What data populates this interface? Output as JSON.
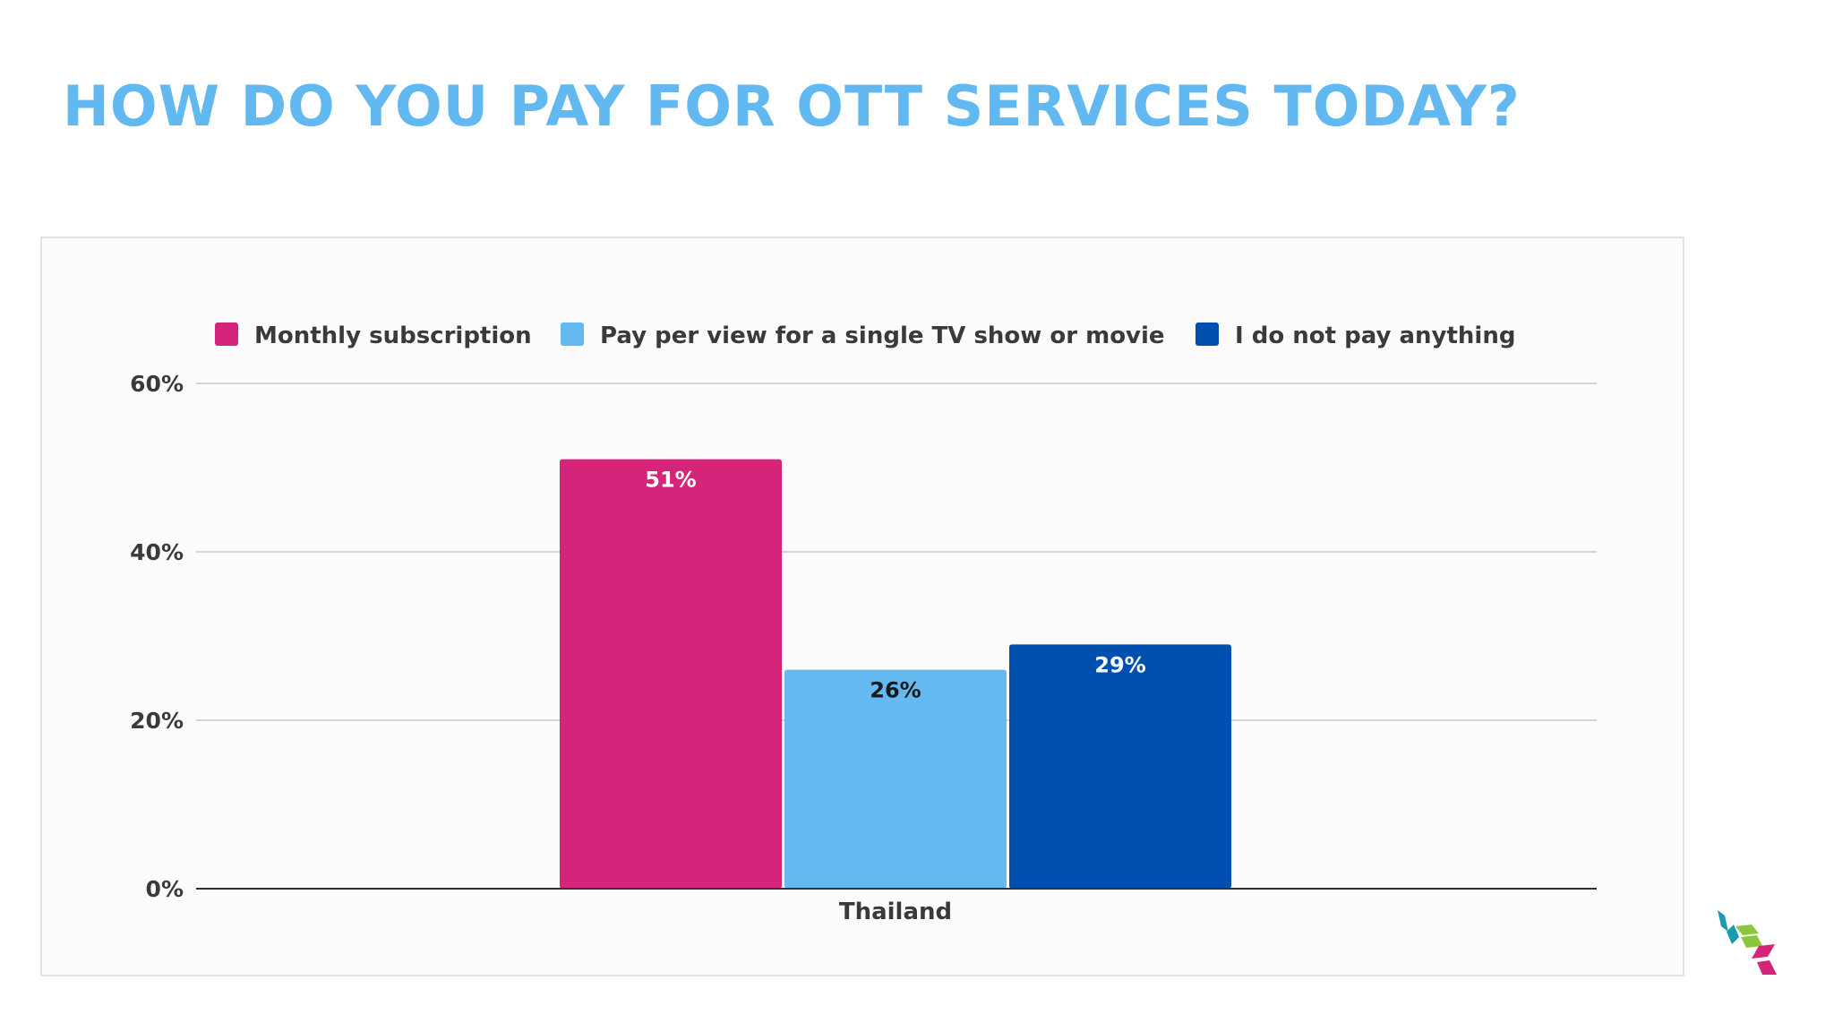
{
  "slide": {
    "title": "HOW DO YOU PAY FOR OTT SERVICES TODAY?",
    "title_color": "#62b8f0"
  },
  "chart_data": {
    "type": "bar",
    "title": "",
    "xlabel": "",
    "ylabel": "",
    "categories": [
      "Thailand"
    ],
    "series": [
      {
        "name": "Monthly subscription",
        "values": [
          51
        ],
        "labels": [
          "51%"
        ],
        "color": "#d4257a",
        "label_color": "#ffffff"
      },
      {
        "name": "Pay per view for a single TV show or movie",
        "values": [
          26
        ],
        "labels": [
          "26%"
        ],
        "color": "#64b9f0",
        "label_color": "#1a1a1a"
      },
      {
        "name": "I do not pay anything",
        "values": [
          29
        ],
        "labels": [
          "29%"
        ],
        "color": "#0050b0",
        "label_color": "#ffffff"
      }
    ],
    "ylim": [
      0,
      60
    ],
    "yticks": [
      0,
      20,
      40,
      60
    ],
    "ytick_labels": [
      "0%",
      "20%",
      "40%",
      "60%"
    ],
    "grid": true,
    "legend_position": "top"
  },
  "logo": {
    "name": "brand-logo-icon",
    "colors": [
      "#1c9bb0",
      "#8cc63f",
      "#d4257a"
    ]
  }
}
